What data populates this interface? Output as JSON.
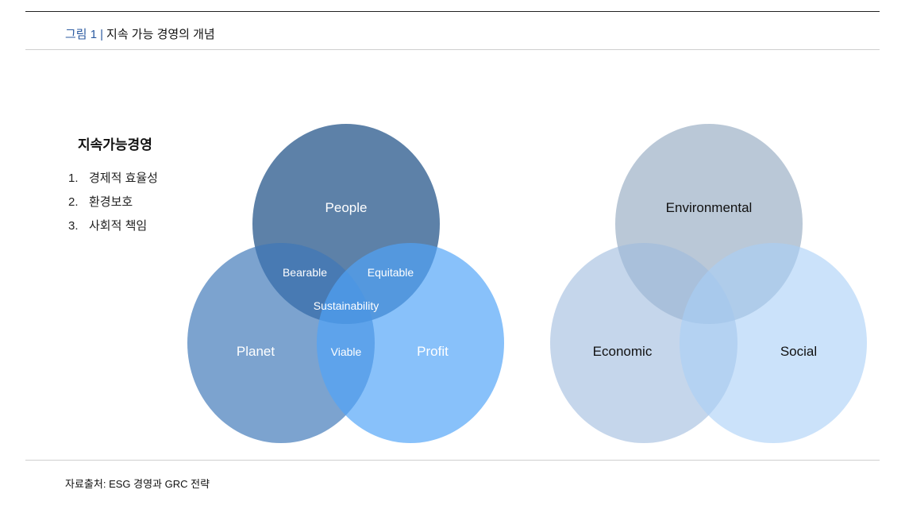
{
  "header": {
    "figure_label": "그림 1",
    "separator": "|",
    "figure_title": "지속 가능 경영의 개념"
  },
  "sidebar": {
    "heading": "지속가능경영",
    "items": [
      {
        "num": "1.",
        "label": "경제적 효율성"
      },
      {
        "num": "2.",
        "label": "환경보호"
      },
      {
        "num": "3.",
        "label": "사회적 책임"
      }
    ]
  },
  "venn_left": {
    "circles": {
      "top": "People",
      "left": "Planet",
      "right": "Profit"
    },
    "overlaps": {
      "top_left": "Bearable",
      "top_right": "Equitable",
      "left_right": "Viable",
      "center": "Sustainability"
    },
    "colors": {
      "top": "#2f5d8f",
      "left": "#3e78b8",
      "right": "#4fa3f7"
    }
  },
  "venn_right": {
    "circles": {
      "top": "Environmental",
      "left": "Economic",
      "right": "Social"
    },
    "colors": {
      "top": "#8fa7bf",
      "left": "#9fbbdd",
      "right": "#a8cff7"
    }
  },
  "footer": {
    "source": "자료출처: ESG 경영과 GRC 전략"
  }
}
